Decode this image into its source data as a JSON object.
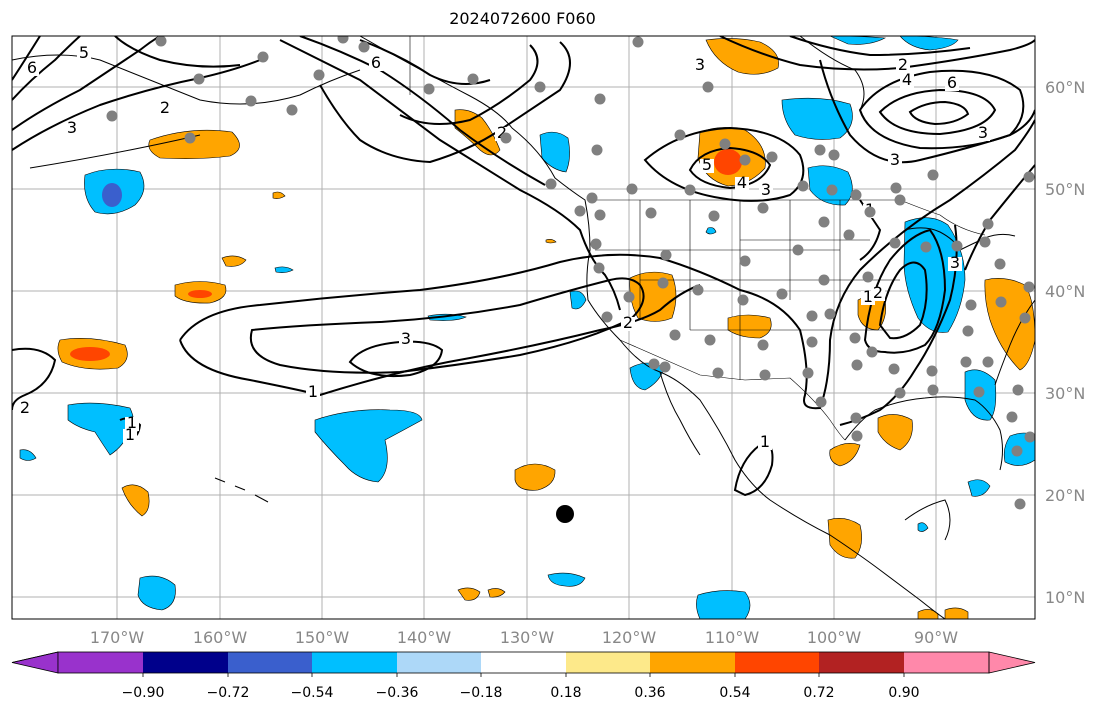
{
  "title": "2024072600 F060",
  "map": {
    "lon_ticks": [
      "170°W",
      "160°W",
      "150°W",
      "140°W",
      "130°W",
      "120°W",
      "110°W",
      "100°W",
      "90°W"
    ],
    "lat_ticks": [
      "60°N",
      "50°N",
      "40°N",
      "30°N",
      "20°N",
      "10°N"
    ],
    "contour_labels": [
      "6",
      "5",
      "2",
      "3",
      "6",
      "3",
      "2",
      "5",
      "4",
      "3",
      "1",
      "2",
      "6",
      "4",
      "3",
      "3",
      "1",
      "3",
      "1",
      "2",
      "1",
      "1",
      "1",
      "2",
      "3",
      "2"
    ],
    "colors": {
      "positive_light": "#fde98a",
      "positive_orange": "#ffa500",
      "positive_red_orange": "#ff4500",
      "negative_light": "#add8f8",
      "negative_blue": "#00bfff",
      "negative_mid": "#3a5fcd",
      "station_dot": "#808080"
    }
  },
  "colorbar": {
    "tick_labels": [
      "−0.90",
      "−0.72",
      "−0.54",
      "−0.36",
      "−0.18",
      "0.18",
      "0.36",
      "0.54",
      "0.72",
      "0.90"
    ],
    "segment_colors": [
      "#9932cc",
      "#00008b",
      "#3a5fcd",
      "#00bfff",
      "#add8f8",
      "#ffffff",
      "#fde98a",
      "#ffa500",
      "#ff4500",
      "#b22222",
      "#ff88aa",
      "#ff88aa"
    ]
  }
}
